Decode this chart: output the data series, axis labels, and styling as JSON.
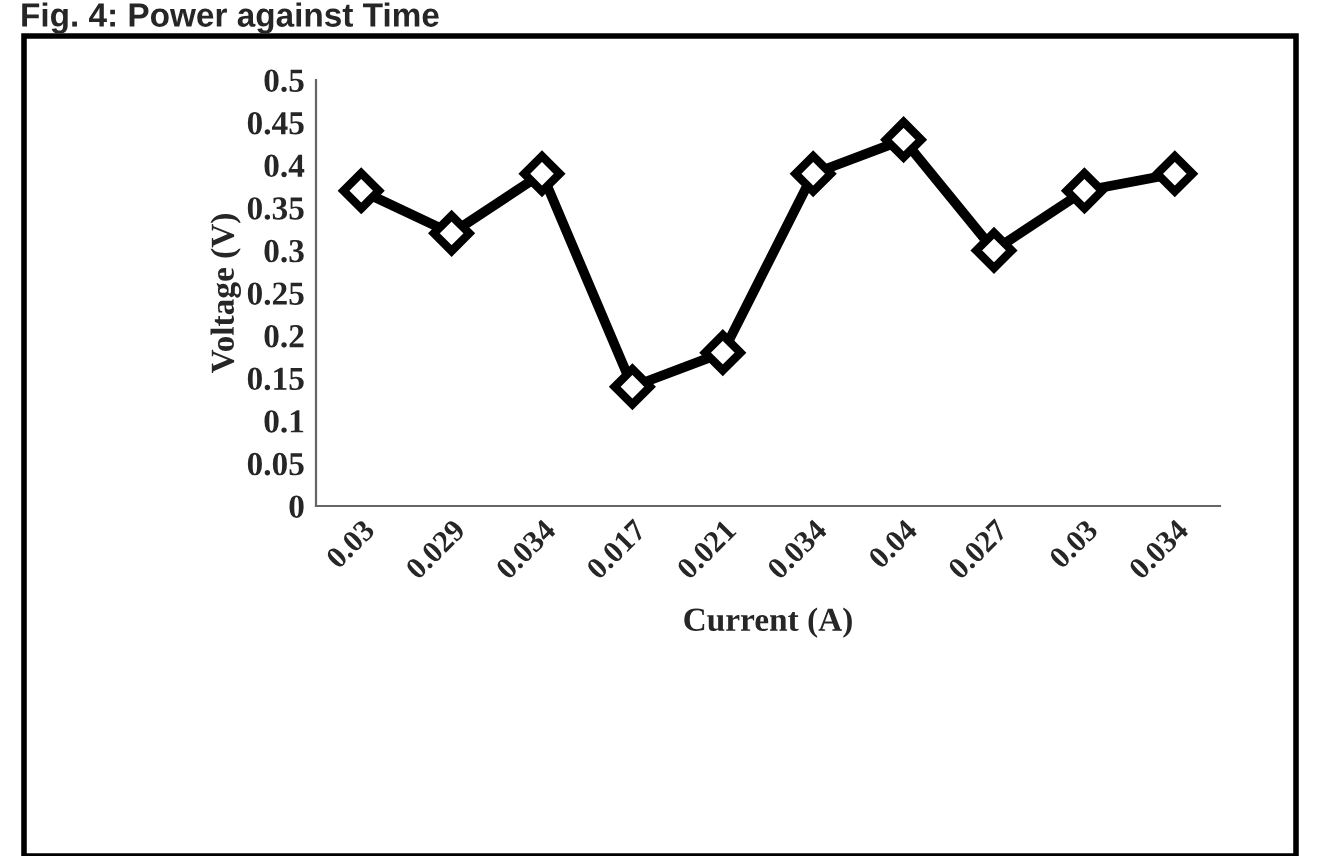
{
  "chart_data": {
    "type": "line",
    "title": "Fig. 4: Power against Time",
    "xlabel": "Current (A)",
    "ylabel": "Voltage (V)",
    "categories": [
      "0.03",
      "0.029",
      "0.034",
      "0.017",
      "0.021",
      "0.034",
      "0.04",
      "0.027",
      "0.03",
      "0.034"
    ],
    "series": [
      {
        "color": "#000000",
        "values": [
          0.37,
          0.32,
          0.39,
          0.14,
          0.18,
          0.39,
          0.43,
          0.3,
          0.37,
          0.39
        ]
      }
    ],
    "ylim": [
      0,
      0.5
    ],
    "yticks": [
      0,
      0.05,
      0.1,
      0.15,
      0.2,
      0.25,
      0.3,
      0.35,
      0.4,
      0.45,
      0.5
    ],
    "grid": false,
    "legend": false,
    "marker": "diamond",
    "line_style": "solid"
  }
}
